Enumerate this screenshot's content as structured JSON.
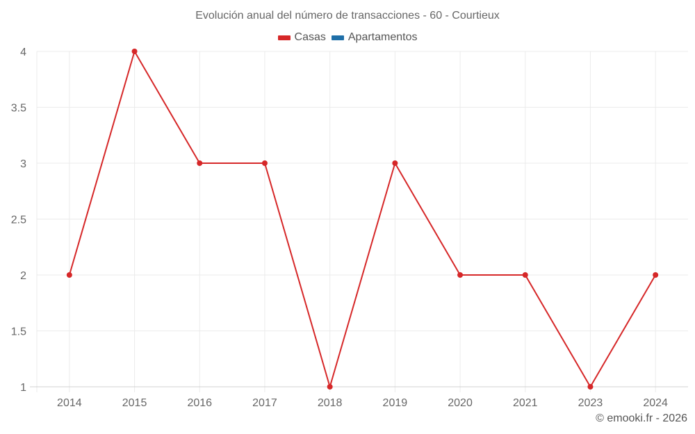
{
  "chart_data": {
    "type": "line",
    "title": "Evolución anual del número de transacciones - 60 - Courtieux",
    "categories": [
      "2014",
      "2015",
      "2016",
      "2017",
      "2018",
      "2019",
      "2020",
      "2021",
      "2023",
      "2024"
    ],
    "series": [
      {
        "name": "Casas",
        "color": "#d62728",
        "values": [
          2,
          4,
          3,
          3,
          1,
          3,
          2,
          2,
          1,
          2
        ]
      },
      {
        "name": "Apartamentos",
        "color": "#1f6fa8",
        "values": []
      }
    ],
    "xlabel": "",
    "ylabel": "",
    "ylim": [
      1,
      4
    ],
    "yticks": [
      "1",
      "1.5",
      "2",
      "2.5",
      "3",
      "3.5",
      "4"
    ],
    "grid": true,
    "legend_position": "top"
  },
  "legend": [
    {
      "label": "Casas",
      "color": "#d62728"
    },
    {
      "label": "Apartamentos",
      "color": "#1f6fa8"
    }
  ],
  "footer": "© emooki.fr - 2026"
}
